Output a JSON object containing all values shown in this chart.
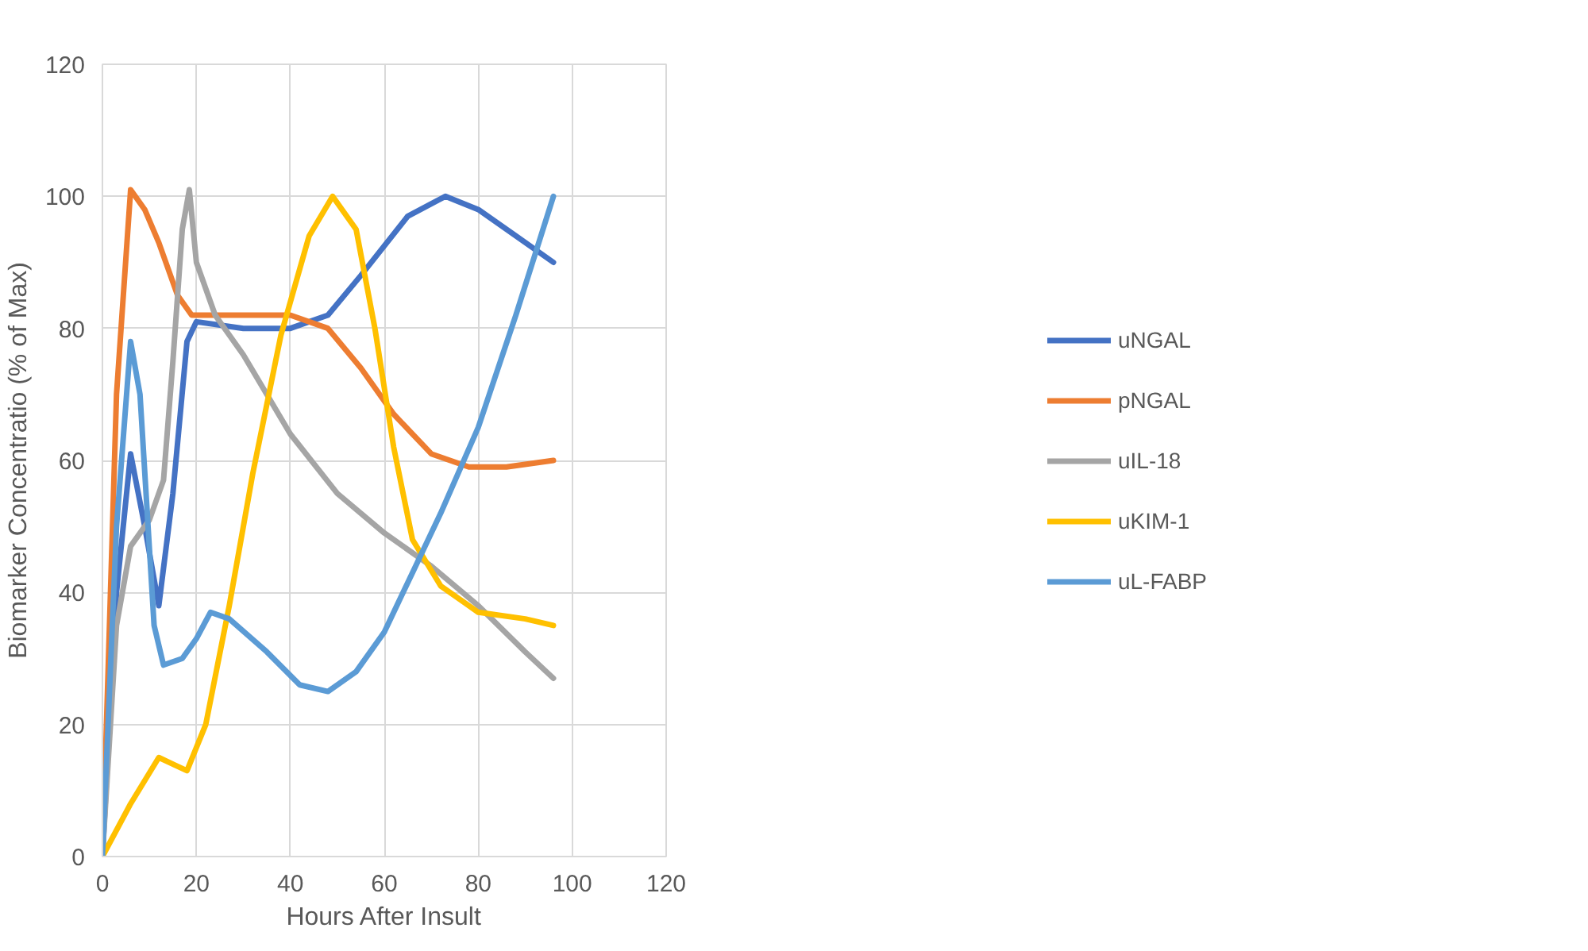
{
  "chart_data": {
    "type": "line",
    "xlabel": "Hours After Insult",
    "ylabel": "Biomarker Concentratio (% of Max)",
    "xlim": [
      0,
      120
    ],
    "xticks": [
      0,
      20,
      40,
      60,
      80,
      100,
      120
    ],
    "ylim": [
      0,
      120
    ],
    "yticks": [
      0,
      20,
      40,
      60,
      80,
      100,
      120
    ],
    "grid": true,
    "legend": "right",
    "marker": "none",
    "line_style": "solid",
    "series": [
      {
        "name": "uNGAL",
        "color": "#4472c4",
        "x": [
          0,
          3,
          6,
          9,
          12,
          15,
          18,
          20,
          30,
          40,
          48,
          55,
          65,
          73,
          80,
          88,
          96
        ],
        "values": [
          0,
          40,
          61,
          50,
          38,
          55,
          78,
          81,
          80,
          80,
          82,
          88,
          97,
          100,
          98,
          94,
          90
        ]
      },
      {
        "name": "pNGAL",
        "color": "#ed7d31",
        "x": [
          0,
          3,
          6,
          9,
          12,
          16,
          19,
          30,
          40,
          48,
          55,
          62,
          70,
          78,
          86,
          96
        ],
        "values": [
          0,
          70,
          101,
          98,
          93,
          85,
          82,
          82,
          82,
          80,
          74,
          67,
          61,
          59,
          59,
          60
        ]
      },
      {
        "name": "uIL-18",
        "color": "#a5a5a5",
        "x": [
          0,
          3,
          6,
          10,
          13,
          15,
          17,
          18.5,
          20,
          24,
          30,
          40,
          50,
          60,
          70,
          80,
          90,
          96
        ],
        "values": [
          0,
          35,
          47,
          51,
          57,
          75,
          95,
          101,
          90,
          82,
          76,
          64,
          55,
          49,
          44,
          38,
          31,
          27
        ]
      },
      {
        "name": "uKIM-1",
        "color": "#ffc000",
        "x": [
          0,
          6,
          12,
          15,
          18,
          22,
          27,
          32,
          38,
          44,
          49,
          54,
          58,
          62,
          66,
          72,
          80,
          90,
          96
        ],
        "values": [
          0,
          8,
          15,
          14,
          13,
          20,
          38,
          58,
          79,
          94,
          100,
          95,
          80,
          62,
          48,
          41,
          37,
          36,
          35
        ]
      },
      {
        "name": "uL-FABP",
        "color": "#5b9bd5",
        "x": [
          0,
          3,
          6,
          8,
          11,
          13,
          17,
          20,
          23,
          27,
          35,
          42,
          48,
          54,
          60,
          66,
          72,
          80,
          88,
          96
        ],
        "values": [
          0,
          50,
          78,
          70,
          35,
          29,
          30,
          33,
          37,
          36,
          31,
          26,
          25,
          28,
          34,
          43,
          52,
          65,
          82,
          100
        ]
      }
    ]
  }
}
